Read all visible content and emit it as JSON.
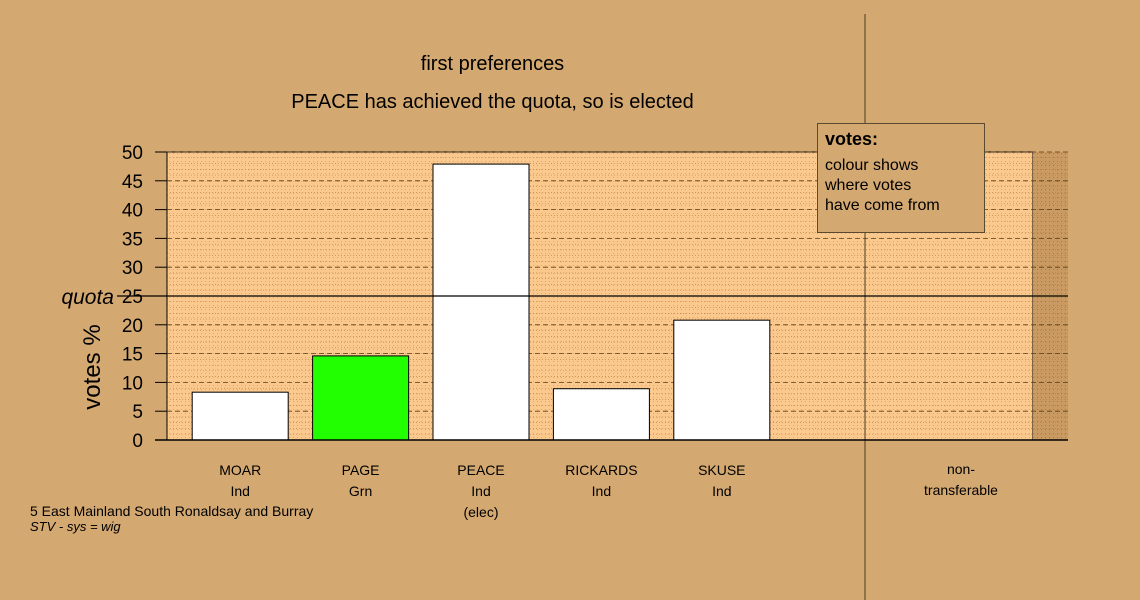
{
  "chart_data": {
    "type": "bar",
    "title": "first preferences",
    "subtitle": "PEACE has achieved the quota, so is elected",
    "ylabel": "votes %",
    "ylim": [
      0,
      50
    ],
    "yticks": [
      0,
      5,
      10,
      15,
      20,
      25,
      30,
      35,
      40,
      45,
      50
    ],
    "quota": 25,
    "quota_label": "quota",
    "categories": [
      {
        "name": "MOAR",
        "party": "Ind",
        "note": "",
        "value": 8.3,
        "color": "#ffffff"
      },
      {
        "name": "PAGE",
        "party": "Grn",
        "note": "",
        "value": 14.6,
        "color": "#22ff00"
      },
      {
        "name": "PEACE",
        "party": "Ind",
        "note": "(elec)",
        "value": 47.9,
        "color": "#ffffff"
      },
      {
        "name": "RICKARDS",
        "party": "Ind",
        "note": "",
        "value": 8.9,
        "color": "#ffffff"
      },
      {
        "name": "SKUSE",
        "party": "Ind",
        "note": "",
        "value": 20.8,
        "color": "#ffffff"
      }
    ],
    "nontransferable": {
      "line1": "non-",
      "line2": "transferable",
      "value": 0
    },
    "legend": {
      "title": "votes:",
      "lines": [
        "colour shows",
        "where votes",
        "have come from"
      ]
    },
    "colors": {
      "background": "#d4a871",
      "plot_area": "#fbc98e",
      "plot_dots": "#e3a560"
    }
  },
  "footer": {
    "line1": "5 East Mainland South Ronaldsay and Burray",
    "line2": "STV - sys = wig"
  }
}
